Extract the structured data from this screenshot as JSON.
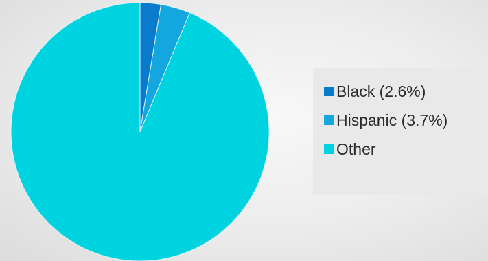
{
  "chart_data": {
    "type": "pie",
    "title": "",
    "categories": [
      "Black (2.6%)",
      "Hispanic (3.7%)",
      "Other"
    ],
    "values": [
      2.6,
      3.7,
      93.7
    ],
    "colors": [
      "#0a7bcc",
      "#13a6df",
      "#00d3e0"
    ],
    "legend_position": "right",
    "start_angle": "12 o'clock",
    "direction": "clockwise"
  },
  "legend": {
    "items": [
      {
        "label": "Black (2.6%)",
        "color": "#0a7bcc"
      },
      {
        "label": "Hispanic (3.7%)",
        "color": "#13a6df"
      },
      {
        "label": "Other",
        "color": "#00d3e0"
      }
    ]
  }
}
